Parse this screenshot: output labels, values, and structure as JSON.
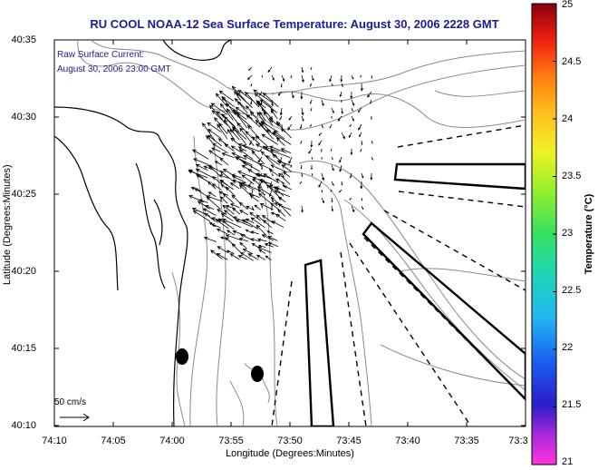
{
  "title": "RU COOL  NOAA-12  Sea Surface Temperature:  August 30, 2006 2228 GMT",
  "overlay": {
    "line1": "Raw Surface Current:",
    "line2": "August 30, 2006 23:00 GMT"
  },
  "axes": {
    "xlabel": "Longitude (Degrees:Minutes)",
    "ylabel": "Latitude (Degrees:Minutes)",
    "xticks": [
      "74:10",
      "74:05",
      "74:00",
      "73:55",
      "73:50",
      "73:45",
      "73:40",
      "73:35",
      "73:3"
    ],
    "yticks": [
      "40:35",
      "40:30",
      "40:25",
      "40:20",
      "40:15",
      "40:10"
    ]
  },
  "colorbar": {
    "title": "Temperature (°C)",
    "ticks": [
      "25",
      "24.5",
      "24",
      "23.5",
      "23",
      "22.5",
      "22",
      "21.5",
      "21"
    ],
    "min": 21,
    "max": 25
  },
  "scale": {
    "label": "50 cm/s"
  },
  "colors": {
    "title_text": "#1a1a9c",
    "coastline": "#000000",
    "bathymetry": "#8a8a8a",
    "vectors": "#000000"
  }
}
